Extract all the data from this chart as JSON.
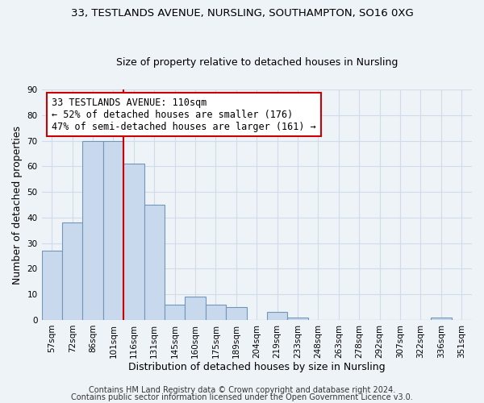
{
  "title1": "33, TESTLANDS AVENUE, NURSLING, SOUTHAMPTON, SO16 0XG",
  "title2": "Size of property relative to detached houses in Nursling",
  "xlabel": "Distribution of detached houses by size in Nursling",
  "ylabel": "Number of detached properties",
  "categories": [
    "57sqm",
    "72sqm",
    "86sqm",
    "101sqm",
    "116sqm",
    "131sqm",
    "145sqm",
    "160sqm",
    "175sqm",
    "189sqm",
    "204sqm",
    "219sqm",
    "233sqm",
    "248sqm",
    "263sqm",
    "278sqm",
    "292sqm",
    "307sqm",
    "322sqm",
    "336sqm",
    "351sqm"
  ],
  "values": [
    27,
    38,
    70,
    70,
    61,
    45,
    6,
    9,
    6,
    5,
    0,
    3,
    1,
    0,
    0,
    0,
    0,
    0,
    0,
    1,
    0
  ],
  "bar_color": "#c9d9ed",
  "bar_edge_color": "#7096b8",
  "vline_color": "#cc0000",
  "vline_x_index": 4,
  "annotation_text": "33 TESTLANDS AVENUE: 110sqm\n← 52% of detached houses are smaller (176)\n47% of semi-detached houses are larger (161) →",
  "annotation_box_color": "#ffffff",
  "annotation_box_edge_color": "#cc0000",
  "ylim": [
    0,
    90
  ],
  "yticks": [
    0,
    10,
    20,
    30,
    40,
    50,
    60,
    70,
    80,
    90
  ],
  "grid_color": "#d0dce8",
  "bg_color": "#eef3f8",
  "footer_text1": "Contains HM Land Registry data © Crown copyright and database right 2024.",
  "footer_text2": "Contains public sector information licensed under the Open Government Licence v3.0.",
  "title1_fontsize": 9.5,
  "title2_fontsize": 9,
  "axis_label_fontsize": 9,
  "tick_fontsize": 7.5,
  "annotation_fontsize": 8.5,
  "footer_fontsize": 7
}
